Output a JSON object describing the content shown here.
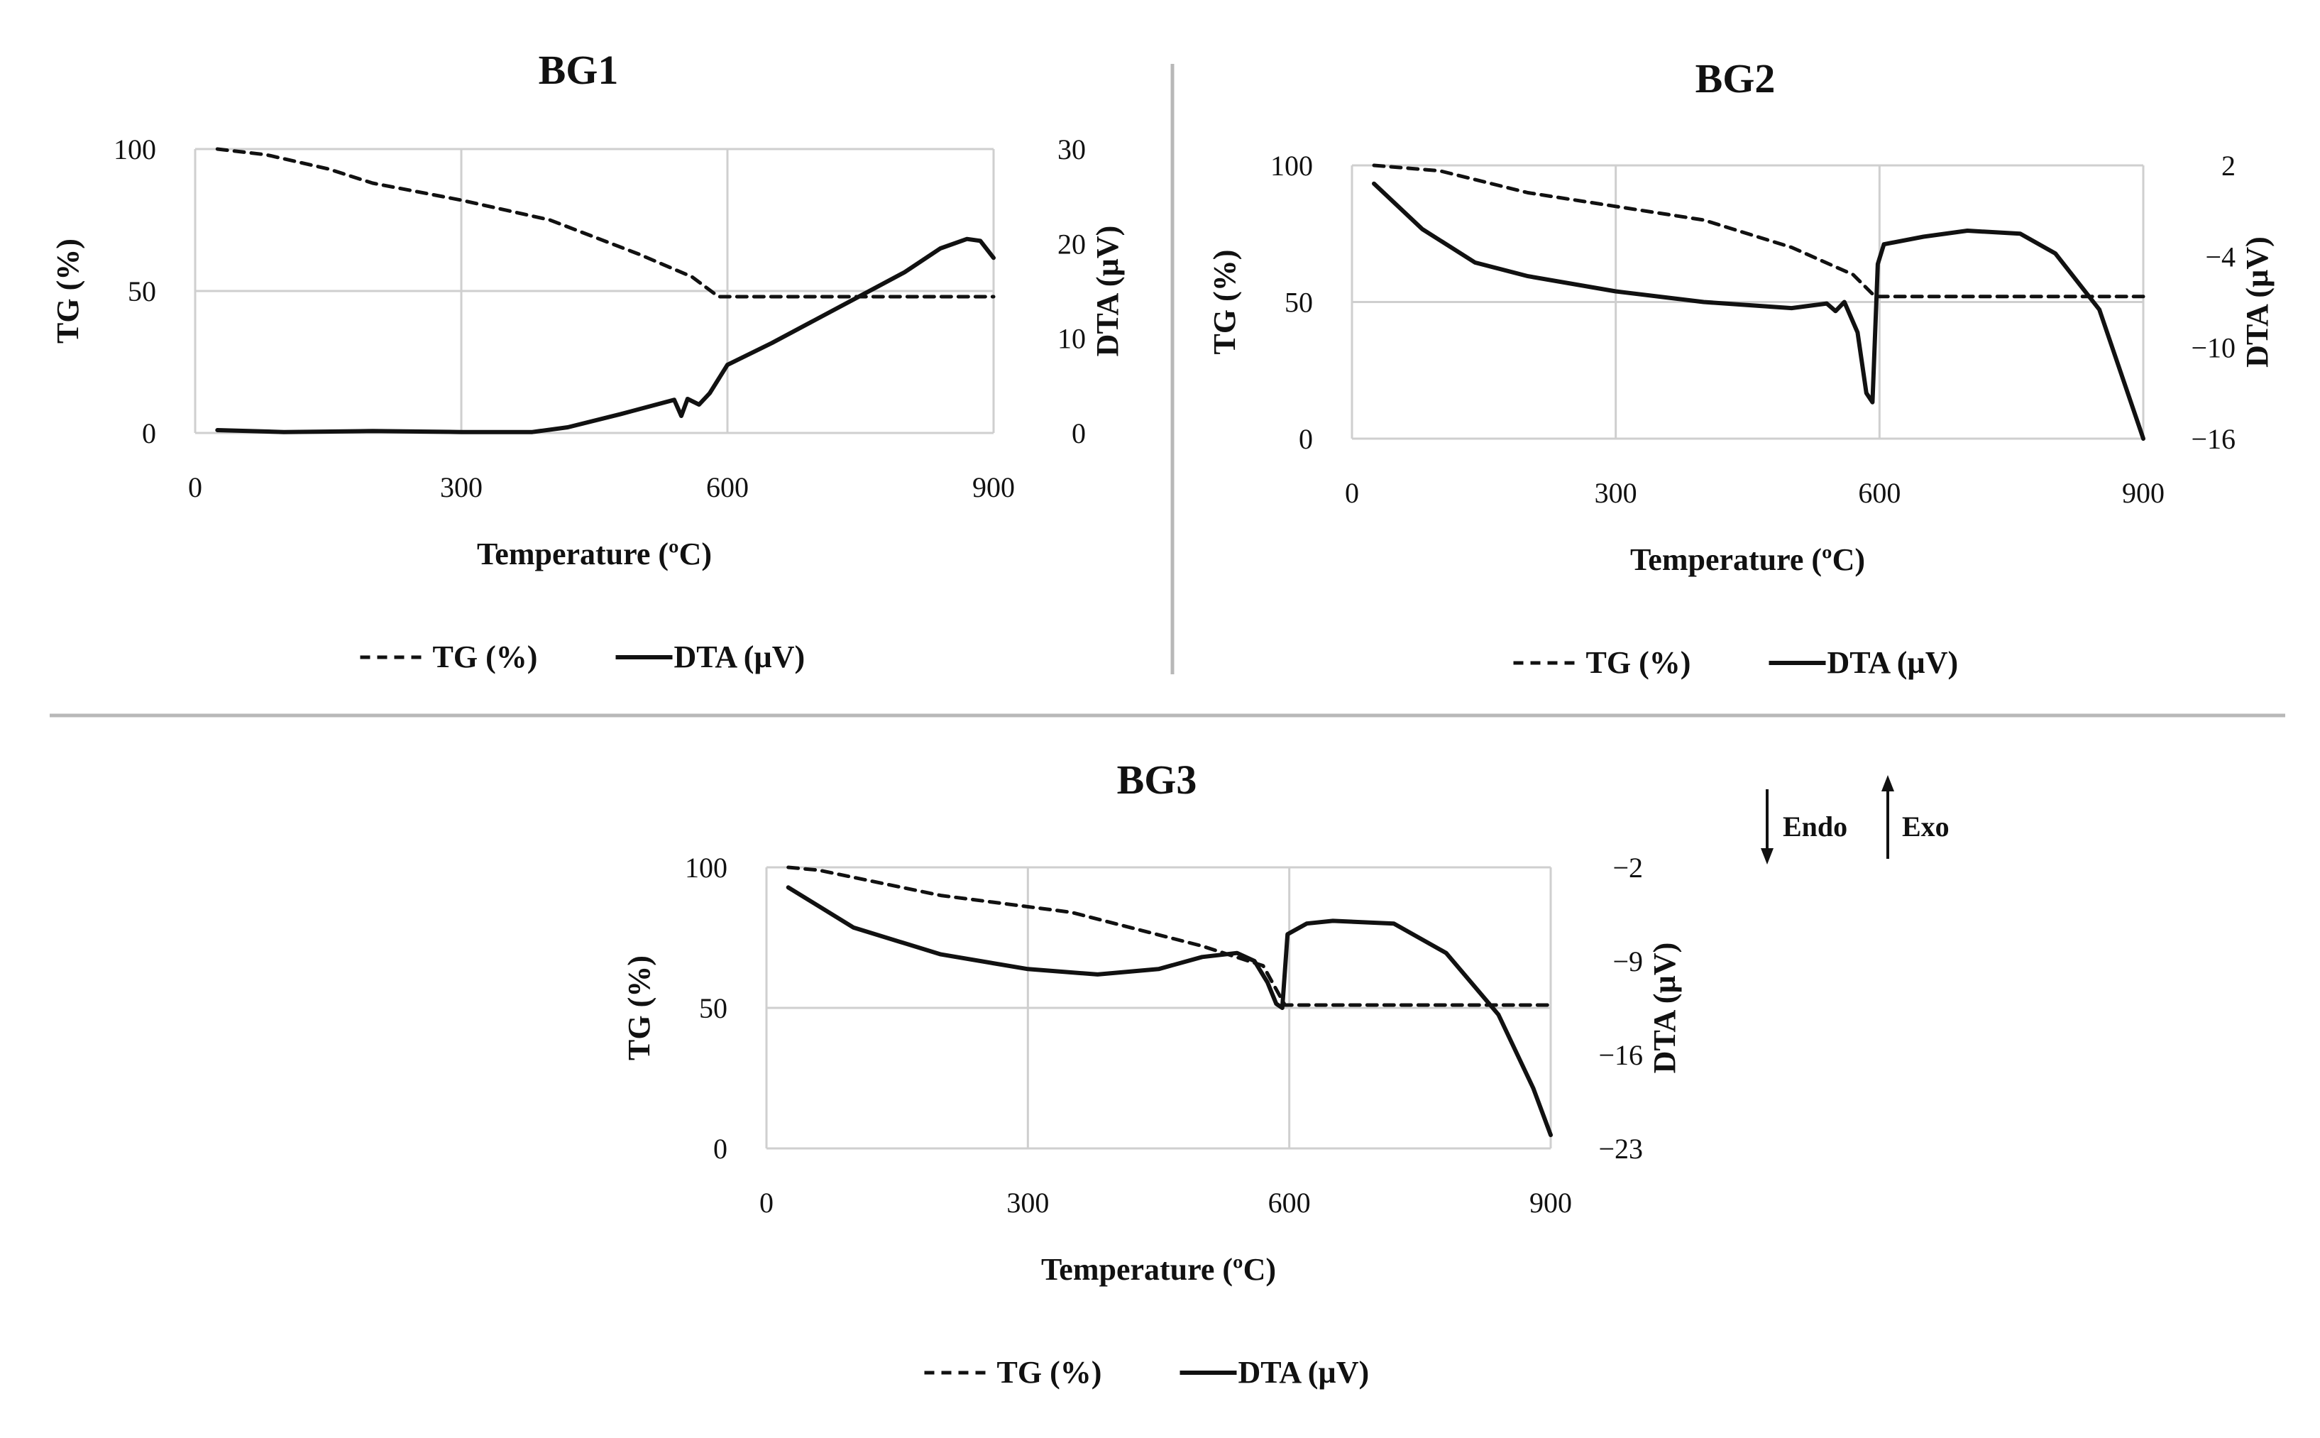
{
  "colors": {
    "line": "#111111",
    "grid": "#cfcfcf",
    "separator": "#b8b8b8"
  },
  "annotation": {
    "endo": "Endo",
    "exo": "Exo"
  },
  "chart_data": [
    {
      "type": "line",
      "title": "BG1",
      "xlabel": "Temperature (ºC)",
      "ylabel": "TG (%)",
      "y2label": "DTA (µV)",
      "xlim": [
        0,
        900
      ],
      "xticks": [
        "0",
        "300",
        "600",
        "900"
      ],
      "ylim": [
        0,
        100
      ],
      "yticks": [
        "0",
        "50",
        "100"
      ],
      "y2lim": [
        0,
        30
      ],
      "y2ticks": [
        "0",
        "10",
        "20",
        "30"
      ],
      "legend": {
        "tg": "TG (%)",
        "dta": "DTA (µV)"
      },
      "series": [
        {
          "name": "TG (%)",
          "axis": "left",
          "style": "dashed",
          "x": [
            25,
            80,
            150,
            200,
            300,
            400,
            500,
            560,
            590,
            650,
            750,
            850,
            900
          ],
          "y": [
            100,
            98,
            93,
            88,
            82,
            75,
            63,
            55,
            48,
            48,
            48,
            48,
            48
          ]
        },
        {
          "name": "DTA (µV)",
          "axis": "right",
          "style": "solid",
          "x": [
            25,
            100,
            200,
            300,
            380,
            420,
            480,
            540,
            548,
            555,
            568,
            580,
            600,
            650,
            700,
            750,
            800,
            840,
            870,
            885,
            900
          ],
          "y": [
            0.3,
            0.1,
            0.2,
            0.1,
            0.1,
            0.6,
            2,
            3.5,
            1.8,
            3.6,
            3.0,
            4.2,
            7.2,
            9.5,
            12,
            14.5,
            17,
            19.5,
            20.5,
            20.3,
            18.5
          ]
        }
      ]
    },
    {
      "type": "line",
      "title": "BG2",
      "xlabel": "Temperature (ºC)",
      "ylabel": "TG (%)",
      "y2label": "DTA (µV)",
      "xlim": [
        0,
        900
      ],
      "xticks": [
        "0",
        "300",
        "600",
        "900"
      ],
      "ylim": [
        0,
        100
      ],
      "yticks": [
        "0",
        "50",
        "100"
      ],
      "y2lim": [
        -16,
        2
      ],
      "y2ticks": [
        "2",
        "-4",
        "-10",
        "-16"
      ],
      "legend": {
        "tg": "TG (%)",
        "dta": "DTA (µV)"
      },
      "series": [
        {
          "name": "TG (%)",
          "axis": "left",
          "style": "dashed",
          "x": [
            25,
            100,
            200,
            300,
            400,
            500,
            570,
            595,
            650,
            750,
            850,
            900
          ],
          "y": [
            100,
            98,
            90,
            85,
            80,
            70,
            60,
            52,
            52,
            52,
            52,
            52
          ]
        },
        {
          "name": "DTA (µV)",
          "axis": "right",
          "style": "solid",
          "x": [
            25,
            80,
            140,
            200,
            300,
            400,
            500,
            540,
            550,
            560,
            575,
            585,
            592,
            598,
            605,
            650,
            700,
            760,
            800,
            850,
            900
          ],
          "y": [
            0.8,
            -2.2,
            -4.4,
            -5.3,
            -6.3,
            -7.0,
            -7.4,
            -7.1,
            -7.6,
            -7.0,
            -9.0,
            -13.0,
            -13.6,
            -4.5,
            -3.2,
            -2.7,
            -2.3,
            -2.5,
            -3.8,
            -7.5,
            -16
          ]
        }
      ]
    },
    {
      "type": "line",
      "title": "BG3",
      "xlabel": "Temperature (ºC)",
      "ylabel": "TG (%)",
      "y2label": "DTA (µV)",
      "xlim": [
        0,
        900
      ],
      "xticks": [
        "0",
        "300",
        "600",
        "900"
      ],
      "ylim": [
        0,
        100
      ],
      "yticks": [
        "0",
        "50",
        "100"
      ],
      "y2lim": [
        -23,
        -2
      ],
      "y2ticks": [
        "-2",
        "-9",
        "-16",
        "-23"
      ],
      "legend": {
        "tg": "TG (%)",
        "dta": "DTA (µV)"
      },
      "series": [
        {
          "name": "TG (%)",
          "axis": "left",
          "style": "dashed",
          "x": [
            25,
            60,
            200,
            350,
            500,
            570,
            595,
            650,
            750,
            850,
            900
          ],
          "y": [
            100,
            99,
            90,
            84,
            72,
            65,
            51,
            51,
            51,
            51,
            51
          ]
        },
        {
          "name": "DTA (µV)",
          "axis": "right",
          "style": "solid",
          "x": [
            25,
            100,
            200,
            300,
            380,
            450,
            500,
            540,
            560,
            575,
            585,
            592,
            598,
            620,
            650,
            720,
            780,
            840,
            880,
            900
          ],
          "y": [
            -3.5,
            -6.5,
            -8.5,
            -9.6,
            -10.0,
            -9.6,
            -8.7,
            -8.4,
            -9.0,
            -10.6,
            -12.2,
            -12.5,
            -7.0,
            -6.2,
            -6.0,
            -6.2,
            -8.4,
            -13.0,
            -18.5,
            -22.0
          ]
        }
      ]
    }
  ]
}
